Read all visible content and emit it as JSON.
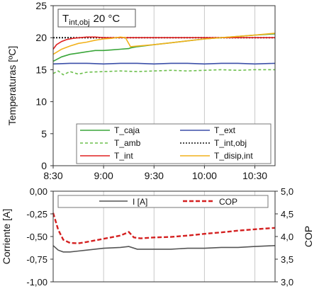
{
  "chart_data": [
    {
      "type": "line",
      "annotation": {
        "prefix": "T",
        "subscript": "int,obj",
        "value": "20 °C"
      },
      "xlabel": "",
      "ylabel": "Temperaturas [ºC]",
      "xlim": [
        510,
        642
      ],
      "ylim": [
        0,
        25
      ],
      "xticks": [
        510,
        540,
        570,
        600,
        630
      ],
      "xticklabels": [
        "8:30",
        "9:00",
        "9:30",
        "10:00",
        "10:30"
      ],
      "yticks": [
        0,
        5,
        10,
        15,
        20,
        25
      ],
      "yticklabels": [
        "0",
        "5",
        "10",
        "15",
        "20",
        "25"
      ],
      "grid": "vertical",
      "legend_position": "bottom-center",
      "series": [
        {
          "name": "T_caja",
          "color": "#3aa63a",
          "dash": "solid",
          "x": [
            510,
            515,
            520,
            525,
            530,
            535,
            540,
            545,
            550,
            555,
            556,
            560,
            570,
            580,
            590,
            600,
            610,
            620,
            630,
            642
          ],
          "y": [
            16.3,
            17.0,
            17.4,
            17.6,
            17.8,
            18.0,
            18.0,
            18.1,
            18.2,
            18.3,
            18.4,
            18.6,
            18.9,
            19.2,
            19.5,
            19.8,
            20.0,
            20.2,
            20.4,
            20.6
          ]
        },
        {
          "name": "T_ext",
          "color": "#3b4fa8",
          "dash": "solid",
          "x": [
            510,
            520,
            530,
            540,
            550,
            560,
            570,
            580,
            590,
            600,
            610,
            620,
            630,
            642
          ],
          "y": [
            15.9,
            16.0,
            16.0,
            15.9,
            16.0,
            16.0,
            15.9,
            16.0,
            16.0,
            15.9,
            16.0,
            16.0,
            15.9,
            16.0
          ]
        },
        {
          "name": "T_amb",
          "color": "#6cbf4c",
          "dash": "dashed",
          "x": [
            510,
            513,
            516,
            520,
            525,
            530,
            540,
            550,
            560,
            570,
            580,
            590,
            600,
            610,
            620,
            630,
            642
          ],
          "y": [
            14.4,
            14.8,
            14.2,
            14.7,
            14.3,
            14.6,
            14.7,
            14.8,
            14.7,
            14.8,
            14.9,
            14.8,
            14.9,
            15.0,
            14.9,
            15.0,
            15.0
          ]
        },
        {
          "name": "T_int,obj",
          "color": "#111111",
          "dash": "dotted",
          "x": [
            510,
            642
          ],
          "y": [
            20.0,
            20.0
          ]
        },
        {
          "name": "T_int",
          "color": "#e02020",
          "dash": "solid",
          "x": [
            510,
            512,
            515,
            518,
            522,
            526,
            530,
            535,
            540,
            550,
            560,
            570,
            580,
            590,
            600,
            610,
            620,
            630,
            642
          ],
          "y": [
            18.2,
            18.9,
            19.4,
            19.7,
            19.9,
            20.0,
            20.1,
            20.1,
            20.0,
            20.0,
            20.0,
            20.0,
            20.0,
            20.0,
            20.0,
            20.0,
            20.0,
            20.0,
            20.0
          ]
        },
        {
          "name": "T_disip,int",
          "color": "#f2b21c",
          "dash": "solid",
          "x": [
            510,
            515,
            520,
            525,
            530,
            535,
            540,
            545,
            550,
            553,
            556,
            560,
            570,
            580,
            590,
            600,
            610,
            620,
            630,
            642
          ],
          "y": [
            17.4,
            18.2,
            18.7,
            19.1,
            19.3,
            19.6,
            19.8,
            19.9,
            20.1,
            20.0,
            18.6,
            18.7,
            18.9,
            19.2,
            19.5,
            19.8,
            20.0,
            20.2,
            20.4,
            20.7
          ]
        }
      ]
    },
    {
      "type": "line",
      "xlabel": "",
      "ylabel": "Corriente [A]",
      "y2label": "COP",
      "xlim": [
        510,
        642
      ],
      "ylim": [
        -1.0,
        0.0
      ],
      "y2lim": [
        3.0,
        5.0
      ],
      "yticks": [
        0.0,
        -0.25,
        -0.5,
        -0.75,
        -1.0
      ],
      "yticklabels": [
        "0,00",
        "-0,25",
        "-0,50",
        "-0,75",
        "-1,00"
      ],
      "y2ticks": [
        5.0,
        4.5,
        4.0,
        3.5,
        3.0
      ],
      "y2ticklabels": [
        "5,0",
        "4,5",
        "4,0",
        "3,5",
        "3,0"
      ],
      "grid": "vertical",
      "legend_position": "top",
      "series": [
        {
          "name": "I [A]",
          "color": "#555555",
          "dash": "solid",
          "axis": "left",
          "x": [
            510,
            513,
            516,
            520,
            525,
            530,
            540,
            550,
            555,
            560,
            570,
            580,
            590,
            600,
            610,
            620,
            630,
            642
          ],
          "y": [
            -0.6,
            -0.65,
            -0.67,
            -0.67,
            -0.66,
            -0.65,
            -0.63,
            -0.62,
            -0.61,
            -0.64,
            -0.64,
            -0.64,
            -0.63,
            -0.63,
            -0.62,
            -0.62,
            -0.61,
            -0.6
          ]
        },
        {
          "name": "COP",
          "color": "#d42020",
          "dash": "dashed",
          "axis": "right",
          "x": [
            510,
            513,
            516,
            520,
            525,
            530,
            540,
            550,
            555,
            558,
            562,
            570,
            580,
            590,
            600,
            610,
            620,
            630,
            642
          ],
          "y": [
            4.52,
            4.15,
            3.93,
            3.86,
            3.85,
            3.88,
            3.95,
            4.02,
            4.1,
            3.98,
            3.96,
            3.98,
            3.99,
            4.02,
            4.06,
            4.09,
            4.13,
            4.16,
            4.19
          ]
        }
      ]
    }
  ]
}
